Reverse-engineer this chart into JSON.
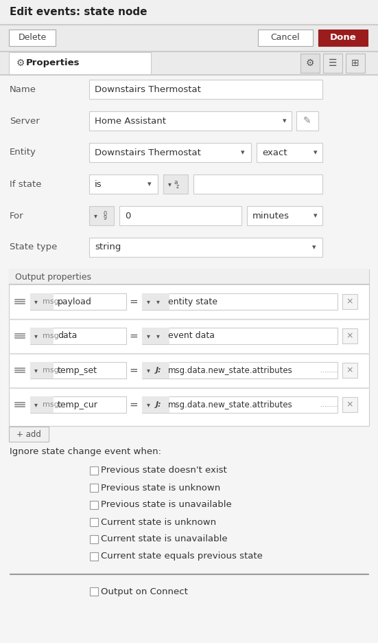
{
  "title": "Edit events: state node",
  "bg_color": "#f0f0f0",
  "white": "#ffffff",
  "border_color": "#cccccc",
  "text_color": "#333333",
  "done_bg": "#9b1c1c",
  "checkboxes": [
    "Previous state doesn't exist",
    "Previous state is unknown",
    "Previous state is unavailable",
    "Current state is unknown",
    "Current state is unavailable",
    "Current state equals previous state"
  ],
  "bottom_checkbox": "Output on Connect"
}
